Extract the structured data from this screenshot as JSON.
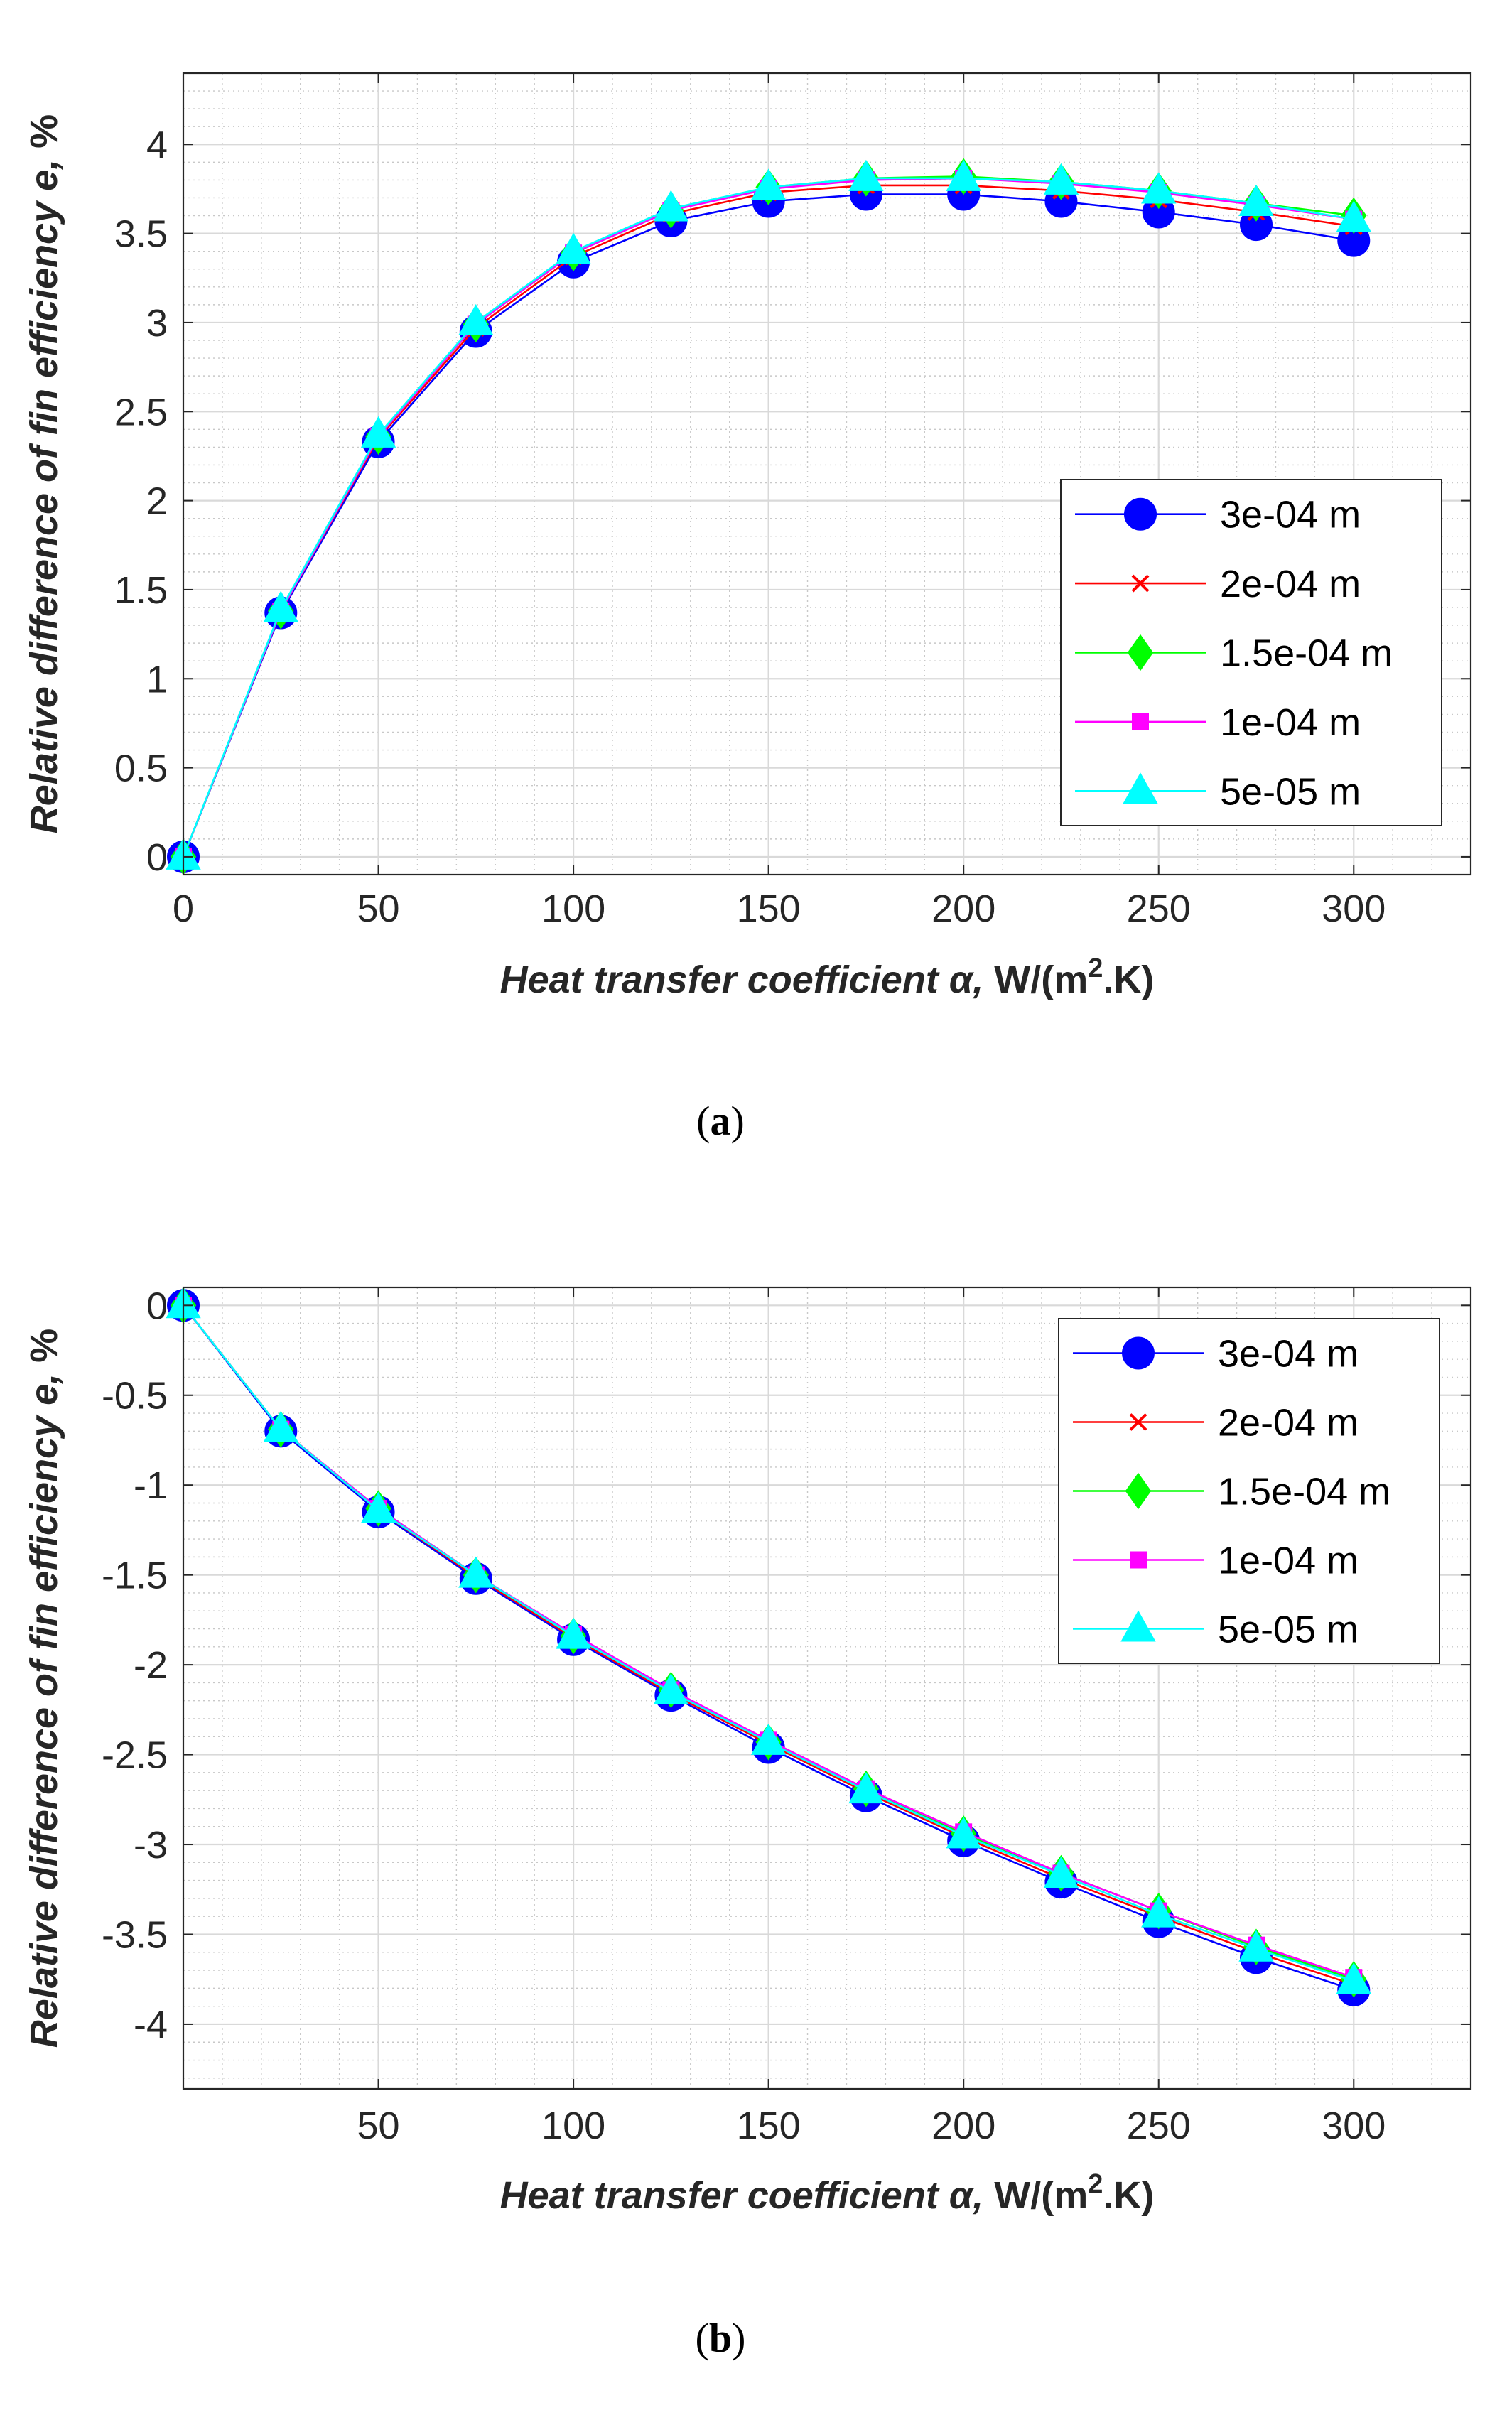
{
  "chart_data": [
    {
      "id": "a",
      "type": "line",
      "caption_open": "(",
      "caption_letter": "a",
      "caption_close": ")",
      "xlabel_italic": "Heat transfer coefficient α,",
      "xlabel_unit_pre": " W/(m",
      "xlabel_unit_sup": "2",
      "xlabel_unit_post": ".K)",
      "ylabel_italic": "Relative difference of fin efficiency e,",
      "ylabel_unit": " %",
      "xlim": [
        0,
        330
      ],
      "ylim": [
        -0.1,
        4.4
      ],
      "xticks": [
        0,
        50,
        100,
        150,
        200,
        250,
        300
      ],
      "xtick_labels": [
        "0",
        "50",
        "100",
        "150",
        "200",
        "250",
        "300"
      ],
      "yticks": [
        0,
        0.5,
        1,
        1.5,
        2,
        2.5,
        3,
        3.5,
        4
      ],
      "ytick_labels": [
        "0",
        "0.5",
        "1",
        "1.5",
        "2",
        "2.5",
        "3",
        "3.5",
        "4"
      ],
      "grid": true,
      "minor_grid": true,
      "legend_position": "right-center",
      "x": [
        0,
        25,
        50,
        75,
        100,
        125,
        150,
        175,
        200,
        225,
        250,
        275,
        300
      ],
      "series": [
        {
          "name": "3e-04 m",
          "color": "#0000ff",
          "marker": "circle",
          "values": [
            0,
            1.37,
            2.33,
            2.95,
            3.34,
            3.57,
            3.68,
            3.72,
            3.72,
            3.68,
            3.62,
            3.55,
            3.46
          ]
        },
        {
          "name": "2e-04 m",
          "color": "#ff0000",
          "marker": "x",
          "values": [
            0,
            1.38,
            2.35,
            2.97,
            3.37,
            3.61,
            3.73,
            3.77,
            3.77,
            3.74,
            3.69,
            3.62,
            3.54
          ]
        },
        {
          "name": "1.5e-04 m",
          "color": "#00ff00",
          "marker": "diamond",
          "values": [
            0,
            1.38,
            2.36,
            2.99,
            3.39,
            3.63,
            3.76,
            3.81,
            3.82,
            3.79,
            3.74,
            3.67,
            3.6
          ]
        },
        {
          "name": "1e-04 m",
          "color": "#ff00ff",
          "marker": "square",
          "values": [
            0,
            1.38,
            2.36,
            2.99,
            3.39,
            3.63,
            3.75,
            3.8,
            3.81,
            3.78,
            3.73,
            3.66,
            3.58
          ]
        },
        {
          "name": "5e-05 m",
          "color": "#00ffff",
          "marker": "triangle",
          "values": [
            0,
            1.39,
            2.37,
            3.0,
            3.4,
            3.64,
            3.76,
            3.81,
            3.81,
            3.79,
            3.74,
            3.67,
            3.58
          ]
        }
      ]
    },
    {
      "id": "b",
      "type": "line",
      "caption_open": "(",
      "caption_letter": "b",
      "caption_close": ")",
      "xlabel_italic": "Heat transfer coefficient α,",
      "xlabel_unit_pre": " W/(m",
      "xlabel_unit_sup": "2",
      "xlabel_unit_post": ".K)",
      "ylabel_italic": "Relative difference of fin efficiency e,",
      "ylabel_unit": " %",
      "xlim": [
        0,
        330
      ],
      "ylim": [
        -4.36,
        0.1
      ],
      "xticks": [
        50,
        100,
        150,
        200,
        250,
        300
      ],
      "xtick_labels": [
        "50",
        "100",
        "150",
        "200",
        "250",
        "300"
      ],
      "yticks": [
        0,
        -0.5,
        -1,
        -1.5,
        -2,
        -2.5,
        -3,
        -3.5,
        -4
      ],
      "ytick_labels": [
        "0",
        "-0.5",
        "-1",
        "-1.5",
        "-2",
        "-2.5",
        "-3",
        "-3.5",
        "-4"
      ],
      "grid": true,
      "minor_grid": true,
      "legend_position": "top-right",
      "x": [
        0,
        25,
        50,
        75,
        100,
        125,
        150,
        175,
        200,
        225,
        250,
        275,
        300
      ],
      "series": [
        {
          "name": "3e-04 m",
          "color": "#0000ff",
          "marker": "circle",
          "values": [
            0,
            -0.7,
            -1.15,
            -1.52,
            -1.86,
            -2.17,
            -2.46,
            -2.73,
            -2.98,
            -3.21,
            -3.43,
            -3.63,
            -3.81
          ]
        },
        {
          "name": "2e-04 m",
          "color": "#ff0000",
          "marker": "x",
          "values": [
            0,
            -0.69,
            -1.14,
            -1.51,
            -1.85,
            -2.16,
            -2.44,
            -2.71,
            -2.96,
            -3.19,
            -3.4,
            -3.6,
            -3.78
          ]
        },
        {
          "name": "1.5e-04 m",
          "color": "#00ff00",
          "marker": "diamond",
          "values": [
            0,
            -0.69,
            -1.13,
            -1.5,
            -1.84,
            -2.14,
            -2.43,
            -2.69,
            -2.94,
            -3.16,
            -3.37,
            -3.57,
            -3.75
          ]
        },
        {
          "name": "1e-04 m",
          "color": "#ff00ff",
          "marker": "square",
          "values": [
            0,
            -0.69,
            -1.13,
            -1.5,
            -1.83,
            -2.14,
            -2.42,
            -2.69,
            -2.93,
            -3.16,
            -3.37,
            -3.56,
            -3.74
          ]
        },
        {
          "name": "5e-05 m",
          "color": "#00ffff",
          "marker": "triangle",
          "values": [
            0,
            -0.69,
            -1.14,
            -1.5,
            -1.84,
            -2.15,
            -2.43,
            -2.7,
            -2.95,
            -3.17,
            -3.39,
            -3.58,
            -3.76
          ]
        }
      ]
    }
  ]
}
